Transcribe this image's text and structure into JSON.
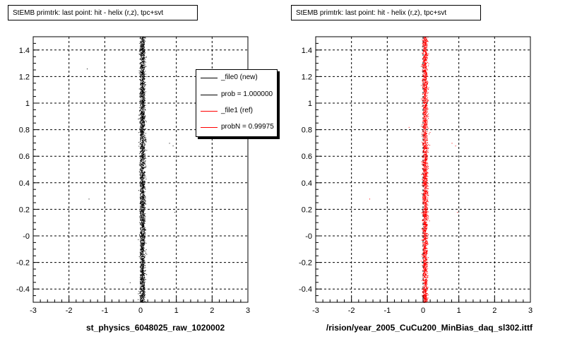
{
  "panels": [
    {
      "title": "StEMB primtrk: last point: hit - helix (r,z), tpc+svt",
      "xlabel": "st_physics_6048025_raw_1020002",
      "color": "#000000",
      "legend": [
        {
          "label": "_file0 (new)",
          "color": "#000000"
        },
        {
          "label": "prob = 1.000000",
          "color": "#000000"
        },
        {
          "label": "_file1 (ref)",
          "color": "#ff0000"
        },
        {
          "label": "probN = 0.99975",
          "color": "#ff0000"
        }
      ]
    },
    {
      "title": "StEMB primtrk: last point: hit - helix (r,z), tpc+svt",
      "xlabel": "rision/year_2005_CuCu200_MinBias_daq_sl302.ittf/",
      "color": "#ff0000",
      "legend": []
    }
  ],
  "chart_data": [
    {
      "type": "scatter",
      "title": "StEMB primtrk: last point: hit - helix (r,z), tpc+svt",
      "xlabel": "st_physics_6048025_raw_1020002",
      "xlim": [
        -3,
        3
      ],
      "ylim": [
        -0.5,
        1.5
      ],
      "x_ticks": [
        "-3",
        "-2",
        "-1",
        "0",
        "1",
        "2",
        "3"
      ],
      "y_ticks": [
        "-0.4",
        "-0.2",
        "-0",
        "0.2",
        "0.4",
        "0.6",
        "0.8",
        "1",
        "1.2",
        "1.4"
      ],
      "grid": true,
      "legend_position": "top-right",
      "series": [
        {
          "name": "_file0 (new)",
          "color": "#000000",
          "x_center": 0.05,
          "x_width": 0.08,
          "y_range": [
            -0.5,
            1.5
          ]
        }
      ],
      "outliers": [
        [
          -1.5,
          1.26
        ],
        [
          -1.45,
          0.28
        ],
        [
          0.9,
          0.68
        ],
        [
          0.95,
          0.18
        ],
        [
          -0.3,
          -0.35
        ],
        [
          0.8,
          0.7
        ]
      ]
    },
    {
      "type": "scatter",
      "title": "StEMB primtrk: last point: hit - helix (r,z), tpc+svt",
      "xlabel": "rision/year_2005_CuCu200_MinBias_daq_sl302.ittf/",
      "xlim": [
        -3,
        3
      ],
      "ylim": [
        -0.5,
        1.5
      ],
      "x_ticks": [
        "-3",
        "-2",
        "-1",
        "0",
        "1",
        "2",
        "3"
      ],
      "y_ticks": [
        "-0.4",
        "-0.2",
        "-0",
        "0.2",
        "0.4",
        "0.6",
        "0.8",
        "1",
        "1.2",
        "1.4"
      ],
      "grid": true,
      "series": [
        {
          "name": "_file1 (ref)",
          "color": "#ff0000",
          "x_center": 0.05,
          "x_width": 0.08,
          "y_range": [
            -0.5,
            1.5
          ]
        }
      ],
      "outliers": [
        [
          -1.5,
          0.28
        ],
        [
          0.9,
          0.68
        ],
        [
          0.95,
          0.18
        ],
        [
          -0.4,
          0.82
        ],
        [
          0.8,
          0.7
        ]
      ]
    }
  ]
}
